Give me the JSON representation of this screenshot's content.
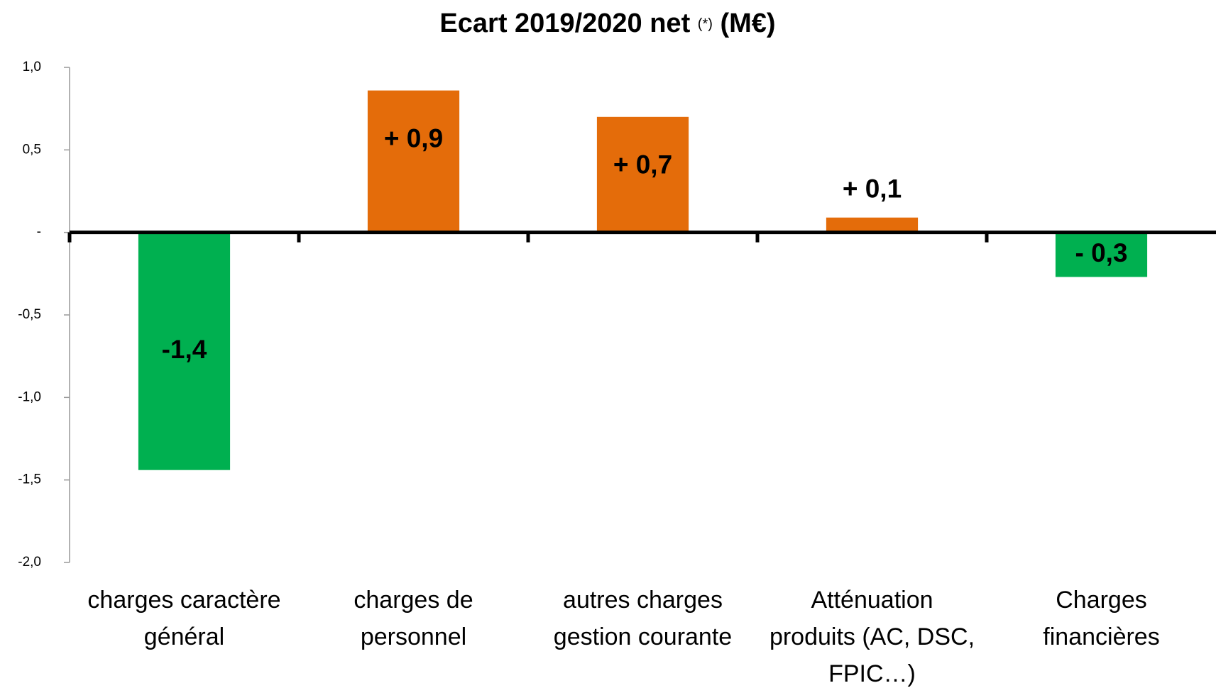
{
  "chart_data": {
    "type": "bar",
    "title": "Ecart 2019/2020 net",
    "title_note": "(*)",
    "title_unit": "(M€)",
    "categories": [
      "charges caractère\ngénéral",
      "charges de\npersonnel",
      "autres charges\ngestion courante",
      "Atténuation\nproduits (AC, DSC,\nFPIC…)",
      "Charges\nfinancières"
    ],
    "values": [
      -1.44,
      0.86,
      0.7,
      0.09,
      -0.27
    ],
    "value_labels": [
      "-1,4",
      "+ 0,9",
      "+ 0,7",
      "+ 0,1",
      "- 0,3"
    ],
    "colors": [
      "#00b050",
      "#e46c0a",
      "#e46c0a",
      "#e46c0a",
      "#00b050"
    ],
    "ylim": [
      -2,
      1
    ],
    "yticks": [
      {
        "value": 1,
        "label": "1,0"
      },
      {
        "value": 0.5,
        "label": "0,5"
      },
      {
        "value": 0,
        "label": "-"
      },
      {
        "value": -0.5,
        "label": "-0,5"
      },
      {
        "value": -1,
        "label": "-1,0"
      },
      {
        "value": -1.5,
        "label": "-1,5"
      },
      {
        "value": -2,
        "label": "-2,0"
      }
    ]
  }
}
